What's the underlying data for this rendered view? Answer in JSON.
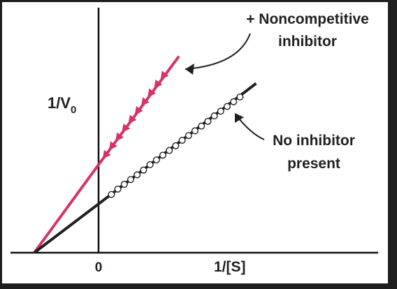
{
  "chart_data": {
    "type": "line",
    "title": "",
    "xlabel": "1/[S]",
    "ylabel": "1/V",
    "ylabel_subscript": "0",
    "x_tick_labels": [
      "0"
    ],
    "colors": {
      "axis": "#111111",
      "no_inhibitor": "#231f20",
      "noncompetitive": "#d6336c",
      "text": "#231f20"
    },
    "x_range": [
      -1,
      2.6
    ],
    "y_range": [
      0,
      3.6
    ],
    "grid": false,
    "legend": "none",
    "series": [
      {
        "key": "noncompetitive",
        "extrapolated": [
          [
            -1,
            0
          ],
          [
            0,
            1.3
          ]
        ],
        "measured": [
          [
            0,
            1.3
          ],
          [
            1.25,
            2.9
          ]
        ],
        "marker": "triangle",
        "marker_points": [
          [
            0.1,
            1.43
          ],
          [
            0.2,
            1.56
          ],
          [
            0.3,
            1.69
          ],
          [
            0.4,
            1.82
          ],
          [
            0.5,
            1.95
          ],
          [
            0.6,
            2.08
          ],
          [
            0.7,
            2.21
          ],
          [
            0.8,
            2.34
          ],
          [
            0.9,
            2.47
          ],
          [
            1.0,
            2.6
          ]
        ]
      },
      {
        "key": "no_inhibitor",
        "extrapolated": [
          [
            -1,
            0
          ],
          [
            0,
            0.72
          ]
        ],
        "measured": [
          [
            0,
            0.72
          ],
          [
            2.45,
            2.5
          ]
        ],
        "marker": "circle",
        "marker_points": [
          [
            0.2,
            0.86
          ],
          [
            0.3,
            0.94
          ],
          [
            0.4,
            1.01
          ],
          [
            0.5,
            1.08
          ],
          [
            0.6,
            1.15
          ],
          [
            0.7,
            1.22
          ],
          [
            0.8,
            1.3
          ],
          [
            0.9,
            1.37
          ],
          [
            1.0,
            1.44
          ],
          [
            1.1,
            1.51
          ],
          [
            1.2,
            1.58
          ],
          [
            1.3,
            1.66
          ],
          [
            1.4,
            1.73
          ],
          [
            1.5,
            1.8
          ],
          [
            1.6,
            1.87
          ],
          [
            1.7,
            1.94
          ],
          [
            1.8,
            2.02
          ],
          [
            1.9,
            2.09
          ],
          [
            2.0,
            2.16
          ],
          [
            2.1,
            2.23
          ],
          [
            2.2,
            2.3
          ]
        ]
      }
    ],
    "annotations": [
      {
        "key": "noncompetitive",
        "lines": [
          "+ Noncompetitive",
          "inhibitor"
        ],
        "points_to": [
          1.35,
          2.78
        ]
      },
      {
        "key": "no_inhibitor",
        "lines": [
          "No inhibitor",
          "present"
        ],
        "points_to": [
          2.05,
          2.1
        ]
      }
    ]
  }
}
